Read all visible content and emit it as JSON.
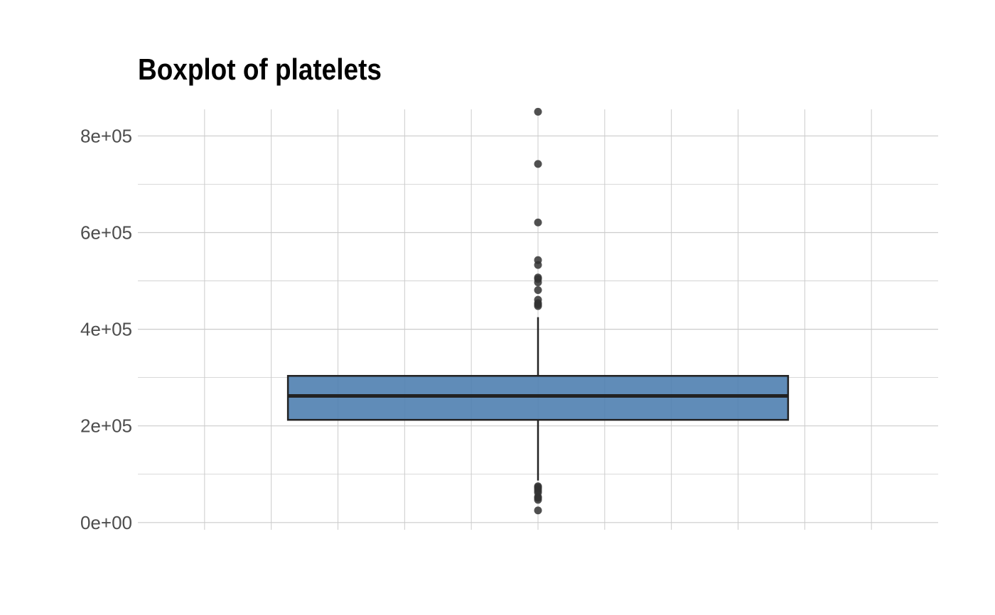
{
  "chart_data": {
    "type": "boxplot",
    "title": "Boxplot of platelets",
    "xlabel": "",
    "ylabel": "",
    "ylim": [
      -15000,
      855000
    ],
    "y_ticks": [
      {
        "value": 0,
        "label": "0e+00"
      },
      {
        "value": 200000,
        "label": "2e+05"
      },
      {
        "value": 400000,
        "label": "4e+05"
      },
      {
        "value": 600000,
        "label": "6e+05"
      },
      {
        "value": 800000,
        "label": "8e+05"
      }
    ],
    "y_minor_ticks": [
      100000,
      300000,
      500000,
      700000
    ],
    "grid": true,
    "series": [
      {
        "q1": 212500,
        "median": 262000,
        "q3": 303500,
        "whisker_low": 87000,
        "whisker_high": 425000,
        "outliers": [
          850000,
          742000,
          621000,
          543000,
          533000,
          507000,
          504000,
          497000,
          481000,
          461000,
          454000,
          451000,
          448000,
          75000,
          73000,
          70000,
          66000,
          62000,
          53000,
          51000,
          47000,
          25100
        ],
        "fill_color": "#4f7fb0",
        "line_color": "#222222",
        "outlier_color": "#333333"
      }
    ],
    "colors": {
      "grid": "#cccccc",
      "background": "#ffffff"
    }
  }
}
